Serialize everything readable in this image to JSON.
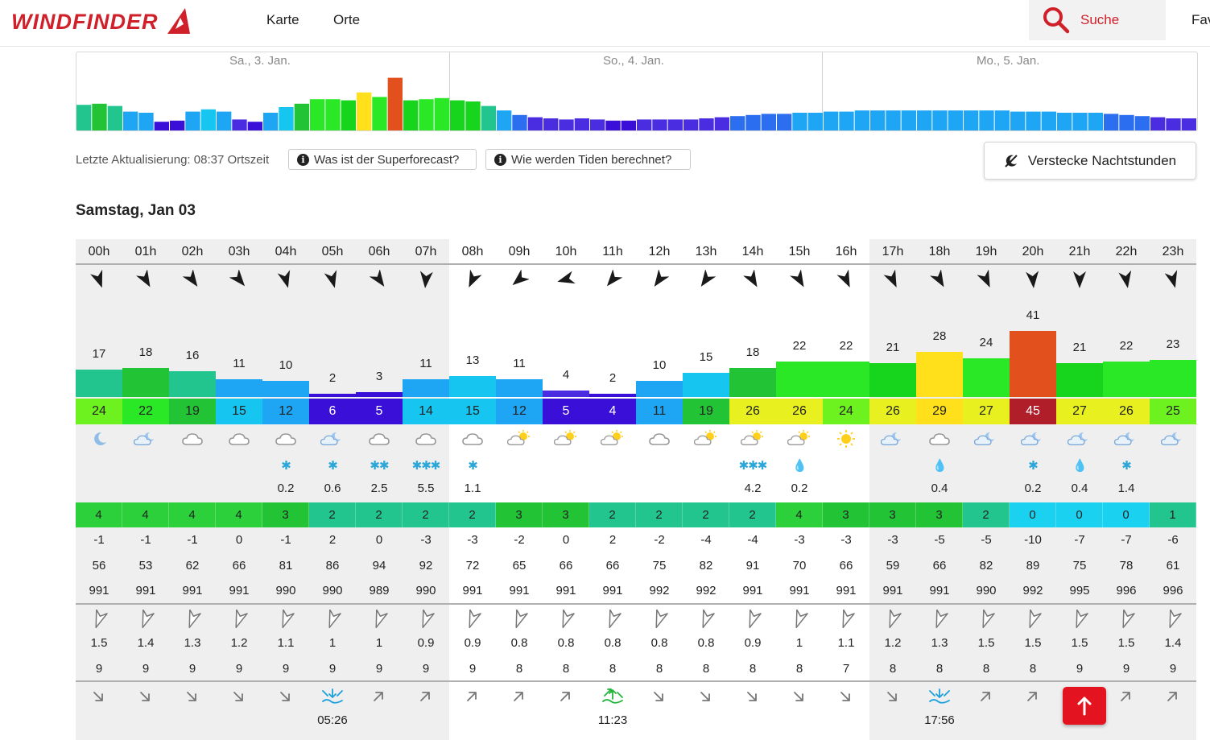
{
  "header": {
    "logo_text": "WINDFINDER",
    "nav": [
      "Karte",
      "Orte"
    ],
    "search_label": "Suche",
    "fav_label": "Fav",
    "brand_color": "#d0202a"
  },
  "overview": {
    "days": [
      "Sa., 3. Jan.",
      "So., 4. Jan.",
      "Mo., 5. Jan."
    ]
  },
  "info": {
    "last_update": "Letzte Aktualisierung: 08:37 Ortszeit",
    "superforecast_label": "Was ist der Superforecast?",
    "tides_label": "Wie werden Tiden berechnet?",
    "hide_night_label": "Verstecke Nachtstunden"
  },
  "day_title": "Samstag, Jan 03",
  "hours": [
    {
      "h": "00h",
      "night": true,
      "dir": 160,
      "speed": "17",
      "gust": "24",
      "wx": "moon",
      "precip_icon": "",
      "precip": "",
      "bft": "4",
      "temp": "-1",
      "hum": "56",
      "press": "991",
      "wave_dir": 200,
      "wave_h": "1.5",
      "wave_p": "9",
      "tide": "down",
      "tide_time": ""
    },
    {
      "h": "01h",
      "night": true,
      "dir": 150,
      "speed": "18",
      "gust": "22",
      "wx": "night-cloud",
      "precip_icon": "",
      "precip": "",
      "bft": "4",
      "temp": "-1",
      "hum": "53",
      "press": "991",
      "wave_dir": 200,
      "wave_h": "1.4",
      "wave_p": "9",
      "tide": "down",
      "tide_time": ""
    },
    {
      "h": "02h",
      "night": true,
      "dir": 145,
      "speed": "16",
      "gust": "19",
      "wx": "cloud",
      "precip_icon": "",
      "precip": "",
      "bft": "4",
      "temp": "-1",
      "hum": "62",
      "press": "991",
      "wave_dir": 200,
      "wave_h": "1.3",
      "wave_p": "9",
      "tide": "down",
      "tide_time": ""
    },
    {
      "h": "03h",
      "night": true,
      "dir": 140,
      "speed": "11",
      "gust": "15",
      "wx": "cloud",
      "precip_icon": "",
      "precip": "",
      "bft": "4",
      "temp": "0",
      "hum": "66",
      "press": "991",
      "wave_dir": 200,
      "wave_h": "1.2",
      "wave_p": "9",
      "tide": "down",
      "tide_time": ""
    },
    {
      "h": "04h",
      "night": true,
      "dir": 165,
      "speed": "10",
      "gust": "12",
      "wx": "cloud",
      "precip_icon": "✱",
      "precip": "0.2",
      "bft": "3",
      "temp": "-1",
      "hum": "81",
      "press": "990",
      "wave_dir": 200,
      "wave_h": "1.1",
      "wave_p": "9",
      "tide": "down",
      "tide_time": ""
    },
    {
      "h": "05h",
      "night": true,
      "dir": 165,
      "speed": "2",
      "gust": "6",
      "wx": "night-cloud",
      "precip_icon": "✱",
      "precip": "0.6",
      "bft": "2",
      "temp": "2",
      "hum": "86",
      "press": "990",
      "wave_dir": 200,
      "wave_h": "1",
      "wave_p": "9",
      "tide": "low",
      "tide_time": "05:26"
    },
    {
      "h": "06h",
      "night": true,
      "dir": 145,
      "speed": "3",
      "gust": "5",
      "wx": "cloud",
      "precip_icon": "✱✱",
      "precip": "2.5",
      "bft": "2",
      "temp": "0",
      "hum": "94",
      "press": "989",
      "wave_dir": 200,
      "wave_h": "1",
      "wave_p": "9",
      "tide": "up",
      "tide_time": ""
    },
    {
      "h": "07h",
      "night": true,
      "dir": 185,
      "speed": "11",
      "gust": "14",
      "wx": "cloud",
      "precip_icon": "✱✱✱",
      "precip": "5.5",
      "bft": "2",
      "temp": "-3",
      "hum": "92",
      "press": "990",
      "wave_dir": 200,
      "wave_h": "0.9",
      "wave_p": "9",
      "tide": "up",
      "tide_time": ""
    },
    {
      "h": "08h",
      "night": false,
      "dir": 205,
      "speed": "13",
      "gust": "15",
      "wx": "cloud",
      "precip_icon": "✱",
      "precip": "1.1",
      "bft": "2",
      "temp": "-3",
      "hum": "72",
      "press": "991",
      "wave_dir": 200,
      "wave_h": "0.9",
      "wave_p": "9",
      "tide": "up",
      "tide_time": ""
    },
    {
      "h": "09h",
      "night": false,
      "dir": 230,
      "speed": "11",
      "gust": "12",
      "wx": "sun-cloud",
      "precip_icon": "",
      "precip": "",
      "bft": "3",
      "temp": "-2",
      "hum": "65",
      "press": "991",
      "wave_dir": 200,
      "wave_h": "0.8",
      "wave_p": "8",
      "tide": "up",
      "tide_time": ""
    },
    {
      "h": "10h",
      "night": false,
      "dir": 255,
      "speed": "4",
      "gust": "5",
      "wx": "sun-cloud",
      "precip_icon": "",
      "precip": "",
      "bft": "3",
      "temp": "0",
      "hum": "66",
      "press": "991",
      "wave_dir": 200,
      "wave_h": "0.8",
      "wave_p": "8",
      "tide": "up",
      "tide_time": ""
    },
    {
      "h": "11h",
      "night": false,
      "dir": 220,
      "speed": "2",
      "gust": "4",
      "wx": "sun-cloud",
      "precip_icon": "",
      "precip": "",
      "bft": "2",
      "temp": "2",
      "hum": "66",
      "press": "991",
      "wave_dir": 200,
      "wave_h": "0.8",
      "wave_p": "8",
      "tide": "high",
      "tide_time": "11:23"
    },
    {
      "h": "12h",
      "night": false,
      "dir": 215,
      "speed": "10",
      "gust": "11",
      "wx": "cloud",
      "precip_icon": "",
      "precip": "",
      "bft": "2",
      "temp": "-2",
      "hum": "75",
      "press": "992",
      "wave_dir": 200,
      "wave_h": "0.8",
      "wave_p": "8",
      "tide": "down",
      "tide_time": ""
    },
    {
      "h": "13h",
      "night": false,
      "dir": 215,
      "speed": "15",
      "gust": "19",
      "wx": "sun-cloud",
      "precip_icon": "",
      "precip": "",
      "bft": "2",
      "temp": "-4",
      "hum": "82",
      "press": "992",
      "wave_dir": 200,
      "wave_h": "0.8",
      "wave_p": "8",
      "tide": "down",
      "tide_time": ""
    },
    {
      "h": "14h",
      "night": false,
      "dir": 150,
      "speed": "18",
      "gust": "26",
      "wx": "sun-cloud",
      "precip_icon": "✱✱✱",
      "precip": "4.2",
      "bft": "2",
      "temp": "-4",
      "hum": "91",
      "press": "991",
      "wave_dir": 200,
      "wave_h": "0.9",
      "wave_p": "8",
      "tide": "down",
      "tide_time": ""
    },
    {
      "h": "15h",
      "night": false,
      "dir": 150,
      "speed": "22",
      "gust": "26",
      "wx": "sun-cloud",
      "precip_icon": "💧",
      "precip": "0.2",
      "bft": "4",
      "temp": "-3",
      "hum": "70",
      "press": "991",
      "wave_dir": 200,
      "wave_h": "1",
      "wave_p": "8",
      "tide": "down",
      "tide_time": ""
    },
    {
      "h": "16h",
      "night": false,
      "dir": 155,
      "speed": "22",
      "gust": "24",
      "wx": "sun",
      "precip_icon": "",
      "precip": "",
      "bft": "3",
      "temp": "-3",
      "hum": "66",
      "press": "991",
      "wave_dir": 200,
      "wave_h": "1.1",
      "wave_p": "7",
      "tide": "down",
      "tide_time": ""
    },
    {
      "h": "17h",
      "night": true,
      "dir": 155,
      "speed": "21",
      "gust": "26",
      "wx": "night-cloud",
      "precip_icon": "",
      "precip": "",
      "bft": "3",
      "temp": "-3",
      "hum": "59",
      "press": "991",
      "wave_dir": 200,
      "wave_h": "1.2",
      "wave_p": "8",
      "tide": "down",
      "tide_time": ""
    },
    {
      "h": "18h",
      "night": true,
      "dir": 150,
      "speed": "28",
      "gust": "29",
      "wx": "cloud",
      "precip_icon": "💧",
      "precip": "0.4",
      "bft": "3",
      "temp": "-5",
      "hum": "66",
      "press": "991",
      "wave_dir": 200,
      "wave_h": "1.3",
      "wave_p": "8",
      "tide": "low",
      "tide_time": "17:56"
    },
    {
      "h": "19h",
      "night": true,
      "dir": 155,
      "speed": "24",
      "gust": "27",
      "wx": "night-cloud",
      "precip_icon": "",
      "precip": "",
      "bft": "2",
      "temp": "-5",
      "hum": "82",
      "press": "990",
      "wave_dir": 200,
      "wave_h": "1.5",
      "wave_p": "8",
      "tide": "up",
      "tide_time": ""
    },
    {
      "h": "20h",
      "night": true,
      "dir": 175,
      "speed": "41",
      "gust": "45",
      "wx": "night-cloud",
      "precip_icon": "✱",
      "precip": "0.2",
      "bft": "0",
      "temp": "-10",
      "hum": "89",
      "press": "992",
      "wave_dir": 200,
      "wave_h": "1.5",
      "wave_p": "8",
      "tide": "up",
      "tide_time": ""
    },
    {
      "h": "21h",
      "night": true,
      "dir": 180,
      "speed": "21",
      "gust": "27",
      "wx": "night-cloud",
      "precip_icon": "💧",
      "precip": "0.4",
      "bft": "0",
      "temp": "-7",
      "hum": "75",
      "press": "995",
      "wave_dir": 200,
      "wave_h": "1.5",
      "wave_p": "9",
      "tide": "up",
      "tide_time": ""
    },
    {
      "h": "22h",
      "night": true,
      "dir": 170,
      "speed": "22",
      "gust": "26",
      "wx": "night-cloud",
      "precip_icon": "✱",
      "precip": "1.4",
      "bft": "0",
      "temp": "-7",
      "hum": "78",
      "press": "996",
      "wave_dir": 200,
      "wave_h": "1.5",
      "wave_p": "9",
      "tide": "up",
      "tide_time": ""
    },
    {
      "h": "23h",
      "night": true,
      "dir": 165,
      "speed": "23",
      "gust": "25",
      "wx": "night-cloud",
      "precip_icon": "",
      "precip": "",
      "bft": "1",
      "temp": "-6",
      "hum": "61",
      "press": "996",
      "wave_dir": 200,
      "wave_h": "1.4",
      "wave_p": "9",
      "tide": "up",
      "tide_time": ""
    }
  ]
}
